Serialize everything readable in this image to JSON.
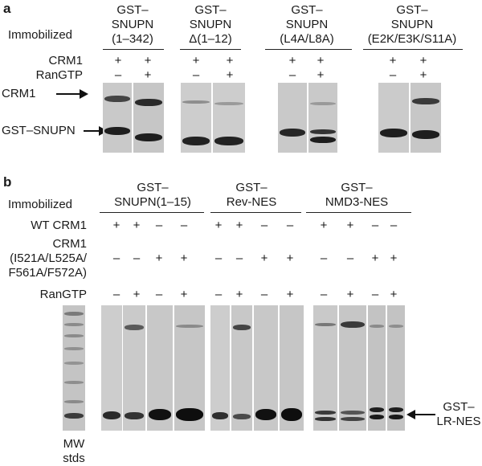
{
  "panel_a": {
    "label": "a",
    "immobilized_label": "Immobilized",
    "row_labels": {
      "crm1": "CRM1",
      "rangtp": "RanGTP"
    },
    "constructs": [
      {
        "line1": "GST–",
        "line2": "SNUPN",
        "line3": "(1–342)"
      },
      {
        "line1": "GST–",
        "line2": "SNUPN",
        "line3": "Δ(1–12)"
      },
      {
        "line1": "GST–",
        "line2": "SNUPN",
        "line3": "(L4A/L8A)"
      },
      {
        "line1": "GST–",
        "line2": "SNUPN",
        "line3": "(E2K/E3K/S11A)"
      }
    ],
    "crm1_symbols": [
      "+",
      "+",
      "+",
      "+",
      "+",
      "+",
      "+",
      "+"
    ],
    "rangtp_symbols": [
      "–",
      "+",
      "–",
      "+",
      "–",
      "+",
      "–",
      "+"
    ],
    "band_labels": {
      "crm1": "CRM1",
      "gst_snupn": "GST–SNUPN"
    }
  },
  "panel_b": {
    "label": "b",
    "immobilized_label": "Immobilized",
    "constructs": [
      {
        "line1": "GST–",
        "line2": "SNUPN(1–15)"
      },
      {
        "line1": "GST–",
        "line2": "Rev-NES"
      },
      {
        "line1": "GST–",
        "line2": "NMD3-NES"
      }
    ],
    "row_labels": {
      "wt_crm1": "WT CRM1",
      "mutant_line1": "CRM1",
      "mutant_line2": "(I521A/L525A/",
      "mutant_line3": "F561A/F572A)",
      "rangtp": "RanGTP"
    },
    "wt_symbols": [
      "+",
      "+",
      "–",
      "–",
      "+",
      "+",
      "–",
      "–",
      "+",
      "+",
      "–",
      "–"
    ],
    "mutant_symbols": [
      "–",
      "–",
      "+",
      "+",
      "–",
      "–",
      "+",
      "+",
      "–",
      "–",
      "+",
      "+"
    ],
    "rangtp_symbols": [
      "–",
      "+",
      "–",
      "+",
      "–",
      "+",
      "–",
      "+",
      "–",
      "+",
      "–",
      "+"
    ],
    "band_label_line1": "GST–",
    "band_label_line2": "LR-NES",
    "mw_label_line1": "MW",
    "mw_label_line2": "stds"
  },
  "colors": {
    "gel_bg": "#c9c9c9",
    "band_dark": "#161616",
    "band_mid": "#3a3a3a",
    "band_faint": "#9a9a9a"
  }
}
